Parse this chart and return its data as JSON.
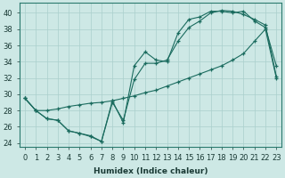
{
  "bg_color": "#cde8e5",
  "grid_color": "#aacfcc",
  "line_color": "#1a6b5e",
  "xlabel": "Humidex (Indice chaleur)",
  "xlim": [
    -0.5,
    23.5
  ],
  "ylim": [
    23.5,
    41.2
  ],
  "xtick_labels": [
    "0",
    "1",
    "2",
    "3",
    "4",
    "5",
    "6",
    "7",
    "8",
    "9",
    "10",
    "11",
    "12",
    "13",
    "14",
    "15",
    "16",
    "17",
    "18",
    "19",
    "20",
    "21",
    "22",
    "23"
  ],
  "ytick_vals": [
    24,
    26,
    28,
    30,
    32,
    34,
    36,
    38,
    40
  ],
  "s1_x": [
    0,
    1,
    2,
    3,
    4,
    5,
    6,
    7,
    8,
    9,
    10,
    11,
    12,
    13,
    14,
    15,
    16,
    17,
    18,
    19,
    20,
    21,
    22,
    23
  ],
  "s1_y": [
    29.5,
    28.0,
    27.0,
    26.8,
    25.5,
    25.2,
    24.9,
    24.2,
    29.2,
    26.5,
    33.5,
    35.2,
    34.2,
    34.0,
    37.5,
    39.2,
    39.5,
    40.2,
    40.2,
    40.0,
    40.2,
    39.0,
    38.2,
    33.5
  ],
  "s2_x": [
    0,
    1,
    2,
    3,
    4,
    5,
    6,
    7,
    8,
    9,
    10,
    11,
    12,
    13,
    14,
    15,
    16,
    17,
    18,
    19,
    20,
    21,
    22,
    23
  ],
  "s2_y": [
    29.5,
    28.0,
    27.0,
    26.8,
    25.5,
    25.2,
    24.8,
    24.2,
    29.0,
    26.8,
    31.8,
    33.8,
    33.8,
    34.2,
    36.5,
    38.2,
    39.0,
    40.0,
    40.3,
    40.2,
    39.8,
    39.2,
    38.5,
    32.2
  ],
  "s3_x": [
    0,
    1,
    2,
    3,
    4,
    5,
    6,
    7,
    8,
    9,
    10,
    11,
    12,
    13,
    14,
    15,
    16,
    17,
    18,
    19,
    20,
    21,
    22,
    23
  ],
  "s3_y": [
    29.5,
    28.0,
    28.0,
    28.2,
    28.5,
    28.7,
    28.9,
    29.0,
    29.2,
    29.5,
    29.8,
    30.2,
    30.5,
    31.0,
    31.5,
    32.0,
    32.5,
    33.0,
    33.5,
    34.2,
    35.0,
    36.5,
    38.0,
    32.0
  ]
}
